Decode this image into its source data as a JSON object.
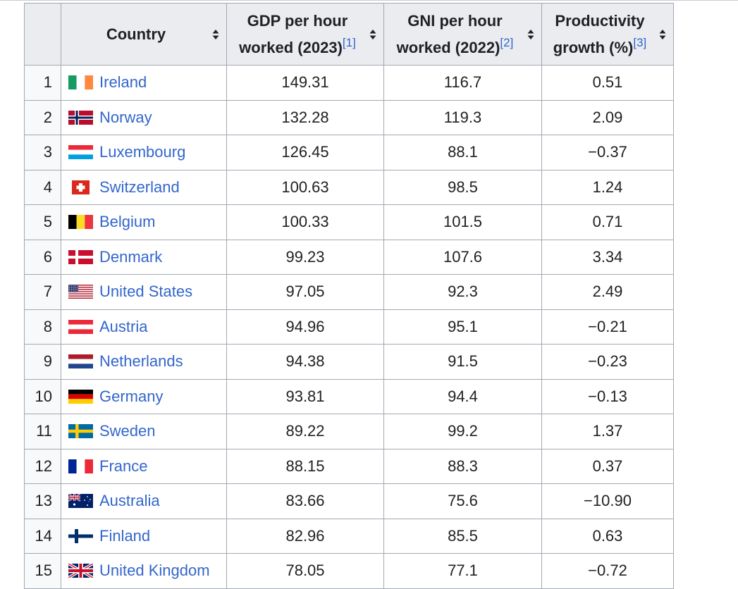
{
  "table": {
    "headers": {
      "rank": "",
      "country": "Country",
      "gdp": {
        "line1": "GDP per hour",
        "line2": "worked (2023)",
        "ref": "[1]"
      },
      "gni": {
        "line1": "GNI per hour",
        "line2": "worked (2022)",
        "ref": "[2]"
      },
      "growth": {
        "line1": "Productivity",
        "line2": "growth (%)",
        "ref": "[3]"
      }
    },
    "rows": [
      {
        "rank": "1",
        "country": "Ireland",
        "flag": "ireland-flag-icon",
        "gdp": "149.31",
        "gni": "116.7",
        "growth": "0.51"
      },
      {
        "rank": "2",
        "country": "Norway",
        "flag": "norway-flag-icon",
        "gdp": "132.28",
        "gni": "119.3",
        "growth": "2.09"
      },
      {
        "rank": "3",
        "country": "Luxembourg",
        "flag": "luxembourg-flag-icon",
        "gdp": "126.45",
        "gni": "88.1",
        "growth": "−0.37"
      },
      {
        "rank": "4",
        "country": "Switzerland",
        "flag": "switzerland-flag-icon",
        "gdp": "100.63",
        "gni": "98.5",
        "growth": "1.24"
      },
      {
        "rank": "5",
        "country": "Belgium",
        "flag": "belgium-flag-icon",
        "gdp": "100.33",
        "gni": "101.5",
        "growth": "0.71"
      },
      {
        "rank": "6",
        "country": "Denmark",
        "flag": "denmark-flag-icon",
        "gdp": "99.23",
        "gni": "107.6",
        "growth": "3.34"
      },
      {
        "rank": "7",
        "country": "United States",
        "flag": "united-states-flag-icon",
        "gdp": "97.05",
        "gni": "92.3",
        "growth": "2.49"
      },
      {
        "rank": "8",
        "country": "Austria",
        "flag": "austria-flag-icon",
        "gdp": "94.96",
        "gni": "95.1",
        "growth": "−0.21"
      },
      {
        "rank": "9",
        "country": "Netherlands",
        "flag": "netherlands-flag-icon",
        "gdp": "94.38",
        "gni": "91.5",
        "growth": "−0.23"
      },
      {
        "rank": "10",
        "country": "Germany",
        "flag": "germany-flag-icon",
        "gdp": "93.81",
        "gni": "94.4",
        "growth": "−0.13"
      },
      {
        "rank": "11",
        "country": "Sweden",
        "flag": "sweden-flag-icon",
        "gdp": "89.22",
        "gni": "99.2",
        "growth": "1.37"
      },
      {
        "rank": "12",
        "country": "France",
        "flag": "france-flag-icon",
        "gdp": "88.15",
        "gni": "88.3",
        "growth": "0.37"
      },
      {
        "rank": "13",
        "country": "Australia",
        "flag": "australia-flag-icon",
        "gdp": "83.66",
        "gni": "75.6",
        "growth": "−10.90"
      },
      {
        "rank": "14",
        "country": "Finland",
        "flag": "finland-flag-icon",
        "gdp": "82.96",
        "gni": "85.5",
        "growth": "0.63"
      },
      {
        "rank": "15",
        "country": "United Kingdom",
        "flag": "united-kingdom-flag-icon",
        "gdp": "78.05",
        "gni": "77.1",
        "growth": "−0.72"
      }
    ]
  },
  "colors": {
    "link": "#3366cc",
    "header_bg": "#eaecf0",
    "rank_bg": "#f8f9fa",
    "border": "#a2a9b1"
  },
  "icons": {
    "sort": "sort-arrows-icon"
  }
}
